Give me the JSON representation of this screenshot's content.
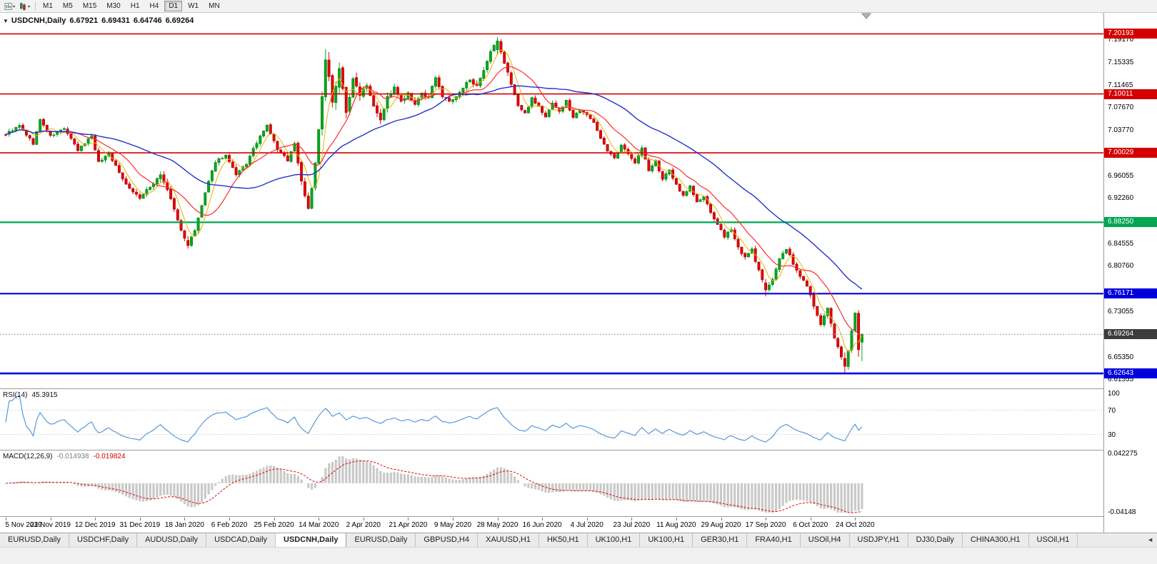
{
  "toolbar": {
    "period_buttons": [
      "M1",
      "M5",
      "M15",
      "M30",
      "H1",
      "H4",
      "D1",
      "W1",
      "MN"
    ],
    "active_period": "D1"
  },
  "main_chart": {
    "collapse_marker": "▼",
    "symbol_title": "USDCNH,Daily",
    "open": "6.67921",
    "high": "6.69431",
    "low": "6.64746",
    "close": "6.69264"
  },
  "price_axis": {
    "scale_labels": [
      "7.19170",
      "7.15335",
      "7.11465",
      "7.07670",
      "7.03770",
      "6.96055",
      "6.92260",
      "6.84555",
      "6.80760",
      "6.73055",
      "6.65350",
      "6.61555"
    ],
    "badges": [
      {
        "text": "7.20193",
        "bg": "#D40000",
        "current": false
      },
      {
        "text": "7.10011",
        "bg": "#D40000",
        "current": false
      },
      {
        "text": "7.00029",
        "bg": "#D40000",
        "current": false
      },
      {
        "text": "6.88250",
        "bg": "#00A651",
        "current": false
      },
      {
        "text": "6.76171",
        "bg": "#0000DD",
        "current": false
      },
      {
        "text": "6.69264",
        "bg": "#3C3C3C",
        "current": true
      },
      {
        "text": "6.62643",
        "bg": "#0000DD",
        "current": false
      }
    ]
  },
  "rsi": {
    "name": "RSI(14)",
    "value": "45.3915",
    "axis_labels": [
      "100",
      "70",
      "30"
    ]
  },
  "macd": {
    "name": "MACD(12,26,9)",
    "main_value": "-0.014938",
    "signal_value": "-0.019824",
    "axis_top": "0.042275",
    "axis_bottom": "-0.04148"
  },
  "date_axis": [
    "5 Nov 2019",
    "23 Nov 2019",
    "12 Dec 2019",
    "31 Dec 2019",
    "18 Jan 2020",
    "6 Feb 2020",
    "25 Feb 2020",
    "14 Mar 2020",
    "2 Apr 2020",
    "21 Apr 2020",
    "9 May 2020",
    "28 May 2020",
    "16 Jun 2020",
    "4 Jul 2020",
    "23 Jul 2020",
    "11 Aug 2020",
    "29 Aug 2020",
    "17 Sep 2020",
    "6 Oct 2020",
    "24 Oct 2020"
  ],
  "tab_bar": {
    "tabs": [
      "EURUSD,Daily",
      "USDCHF,Daily",
      "AUDUSD,Daily",
      "USDCAD,Daily",
      "USDCNH,Daily",
      "EURUSD,Daily",
      "GBPUSD,H4",
      "XAUUSD,H1",
      "HK50,H1",
      "UK100,H1",
      "UK100,H1",
      "GER30,H1",
      "FRA40,H1",
      "USOil,H4",
      "USDJPY,H1",
      "DJ30,Daily",
      "CHINA300,H1",
      "USOil,H1"
    ],
    "active_index": 4,
    "scroll_icon": "◄"
  },
  "chart_data": {
    "type": "candlestick",
    "symbol": "USDCNH",
    "timeframe": "D1",
    "candle_count": 250,
    "bars_per_date_label": 13,
    "price_range_visible": {
      "top": 7.2375,
      "bottom": 6.6011
    },
    "last_bar": {
      "o": 6.67921,
      "h": 6.69431,
      "l": 6.64746,
      "c": 6.69264
    },
    "current_price": 6.69264,
    "levels": [
      {
        "price": 7.20193,
        "color": "#D40000",
        "width": 1.6
      },
      {
        "price": 7.10011,
        "color": "#D40000",
        "width": 1.6
      },
      {
        "price": 7.00029,
        "color": "#D40000",
        "width": 1.6
      },
      {
        "price": 6.8825,
        "color": "#00A651",
        "width": 2.2
      },
      {
        "price": 6.76171,
        "color": "#0000DD",
        "width": 2.2
      },
      {
        "price": 6.62643,
        "color": "#0000DD",
        "width": 2.6
      }
    ],
    "candle_colors": {
      "bull": "#00A81E",
      "bull_border": "#04750F",
      "bear": "#E60000",
      "bear_border": "#8F0000"
    },
    "moving_averages": [
      {
        "period": 5,
        "color": "#E3B500",
        "width": 1
      },
      {
        "period": 13,
        "color": "#FF2A2A",
        "width": 1.2
      },
      {
        "period": 40,
        "color": "#2233CC",
        "width": 1.4
      }
    ],
    "rsi": {
      "period": 14,
      "color": "#4A90D9",
      "levels": [
        70,
        30
      ],
      "last": 45.3915
    },
    "macd": {
      "fast": 12,
      "slow": 26,
      "signal_period": 9,
      "hist_color": "#C9C9C9",
      "signal_color": "#E60000",
      "axis_max": 0.042275,
      "axis_min": -0.04148,
      "last_main": -0.014938,
      "last_signal": -0.019824
    },
    "seed": 9,
    "close_keyframes": [
      [
        0,
        7.032
      ],
      [
        4,
        7.046
      ],
      [
        8,
        7.016
      ],
      [
        10,
        7.056
      ],
      [
        13,
        7.028
      ],
      [
        17,
        7.042
      ],
      [
        21,
        7.004
      ],
      [
        25,
        7.03
      ],
      [
        27,
        6.984
      ],
      [
        30,
        7.0
      ],
      [
        33,
        6.966
      ],
      [
        36,
        6.94
      ],
      [
        39,
        6.924
      ],
      [
        42,
        6.942
      ],
      [
        45,
        6.964
      ],
      [
        48,
        6.922
      ],
      [
        51,
        6.868
      ],
      [
        53,
        6.843
      ],
      [
        55,
        6.868
      ],
      [
        58,
        6.932
      ],
      [
        61,
        6.986
      ],
      [
        64,
        6.996
      ],
      [
        67,
        6.962
      ],
      [
        70,
        6.982
      ],
      [
        73,
        7.018
      ],
      [
        76,
        7.046
      ],
      [
        79,
        7.006
      ],
      [
        82,
        6.988
      ],
      [
        84,
        7.016
      ],
      [
        86,
        6.952
      ],
      [
        88,
        6.906
      ],
      [
        90,
        6.98
      ],
      [
        92,
        7.095
      ],
      [
        93,
        7.158
      ],
      [
        95,
        7.092
      ],
      [
        97,
        7.142
      ],
      [
        99,
        7.072
      ],
      [
        101,
        7.122
      ],
      [
        103,
        7.102
      ],
      [
        105,
        7.118
      ],
      [
        107,
        7.082
      ],
      [
        109,
        7.058
      ],
      [
        111,
        7.094
      ],
      [
        113,
        7.11
      ],
      [
        115,
        7.086
      ],
      [
        117,
        7.1
      ],
      [
        119,
        7.08
      ],
      [
        121,
        7.102
      ],
      [
        123,
        7.092
      ],
      [
        125,
        7.13
      ],
      [
        127,
        7.096
      ],
      [
        129,
        7.088
      ],
      [
        131,
        7.094
      ],
      [
        133,
        7.11
      ],
      [
        135,
        7.126
      ],
      [
        137,
        7.112
      ],
      [
        139,
        7.138
      ],
      [
        141,
        7.17
      ],
      [
        143,
        7.192
      ],
      [
        145,
        7.152
      ],
      [
        147,
        7.118
      ],
      [
        149,
        7.08
      ],
      [
        151,
        7.066
      ],
      [
        153,
        7.094
      ],
      [
        155,
        7.078
      ],
      [
        157,
        7.06
      ],
      [
        159,
        7.086
      ],
      [
        161,
        7.07
      ],
      [
        163,
        7.088
      ],
      [
        165,
        7.06
      ],
      [
        167,
        7.074
      ],
      [
        169,
        7.066
      ],
      [
        171,
        7.05
      ],
      [
        173,
        7.026
      ],
      [
        175,
        7.004
      ],
      [
        177,
        6.99
      ],
      [
        179,
        7.012
      ],
      [
        181,
        7.0
      ],
      [
        183,
        6.984
      ],
      [
        185,
        7.008
      ],
      [
        187,
        6.97
      ],
      [
        189,
        6.986
      ],
      [
        191,
        6.956
      ],
      [
        193,
        6.97
      ],
      [
        195,
        6.946
      ],
      [
        197,
        6.928
      ],
      [
        199,
        6.944
      ],
      [
        201,
        6.916
      ],
      [
        203,
        6.926
      ],
      [
        205,
        6.898
      ],
      [
        207,
        6.88
      ],
      [
        209,
        6.856
      ],
      [
        211,
        6.872
      ],
      [
        213,
        6.84
      ],
      [
        215,
        6.822
      ],
      [
        217,
        6.836
      ],
      [
        219,
        6.8
      ],
      [
        221,
        6.768
      ],
      [
        223,
        6.788
      ],
      [
        225,
        6.82
      ],
      [
        227,
        6.838
      ],
      [
        229,
        6.812
      ],
      [
        231,
        6.79
      ],
      [
        233,
        6.776
      ],
      [
        235,
        6.74
      ],
      [
        237,
        6.71
      ],
      [
        239,
        6.736
      ],
      [
        241,
        6.684
      ],
      [
        243,
        6.656
      ],
      [
        244,
        6.64
      ],
      [
        245,
        6.668
      ],
      [
        246,
        6.7
      ],
      [
        247,
        6.728
      ],
      [
        248,
        6.666
      ],
      [
        249,
        6.6926
      ]
    ],
    "volatility_keyframes": [
      [
        0,
        0.0065
      ],
      [
        35,
        0.007
      ],
      [
        48,
        0.009
      ],
      [
        56,
        0.009
      ],
      [
        62,
        0.007
      ],
      [
        84,
        0.007
      ],
      [
        88,
        0.015
      ],
      [
        94,
        0.022
      ],
      [
        101,
        0.017
      ],
      [
        108,
        0.012
      ],
      [
        116,
        0.008
      ],
      [
        124,
        0.009
      ],
      [
        138,
        0.008
      ],
      [
        144,
        0.01
      ],
      [
        150,
        0.008
      ],
      [
        160,
        0.0065
      ],
      [
        180,
        0.006
      ],
      [
        200,
        0.006
      ],
      [
        214,
        0.0075
      ],
      [
        222,
        0.008
      ],
      [
        232,
        0.007
      ],
      [
        240,
        0.009
      ],
      [
        246,
        0.01
      ],
      [
        249,
        0.011
      ]
    ],
    "key_candles": {
      "53": {
        "o": 6.852,
        "h": 6.859,
        "l": 6.838,
        "c": 6.843
      },
      "93": {
        "o": 7.095,
        "h": 7.176,
        "l": 7.088,
        "c": 7.158
      },
      "143": {
        "o": 7.175,
        "h": 7.1965,
        "l": 7.166,
        "c": 7.19
      },
      "221": {
        "o": 6.78,
        "h": 6.7865,
        "l": 6.757,
        "c": 6.768
      },
      "244": {
        "o": 6.652,
        "h": 6.662,
        "l": 6.6275,
        "c": 6.6385
      },
      "248": {
        "o": 6.7285,
        "h": 6.7335,
        "l": 6.6545,
        "c": 6.6665
      },
      "249": {
        "o": 6.67921,
        "h": 6.69431,
        "l": 6.64746,
        "c": 6.69264
      }
    }
  }
}
